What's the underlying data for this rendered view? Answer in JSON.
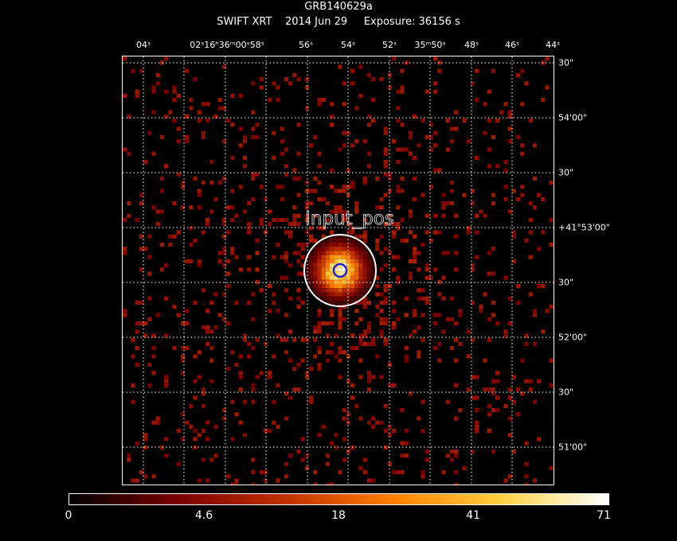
{
  "header": {
    "target": "GRB140629a",
    "instrument": "SWIFT XRT",
    "date": "2014 Jun 29",
    "exposure": "Exposure: 36156 s"
  },
  "axes": {
    "top_labels": [
      "04ˢ",
      "02ˢ16ʰ36ᵐ00ˢ58ˢ",
      "56ˢ",
      "54ˢ",
      "52ˢ",
      "35ᵐ50ˢ",
      "48ˢ",
      "46ˢ",
      "44ˢ"
    ],
    "right_labels": [
      "30\"",
      "54'00\"",
      "30\"",
      "+41°53'00\"",
      "30\"",
      "52'00\"",
      "30\"",
      "51'00\""
    ]
  },
  "source": {
    "label": "Input_pos",
    "circle_color": "#ffffff",
    "marker_color": "#2222cc"
  },
  "colorbar": {
    "ticks": [
      "0",
      "4.6",
      "18",
      "41",
      "71"
    ],
    "colors": [
      "#000000",
      "#7a0000",
      "#c03000",
      "#ff8000",
      "#ffd040",
      "#ffffff"
    ]
  }
}
